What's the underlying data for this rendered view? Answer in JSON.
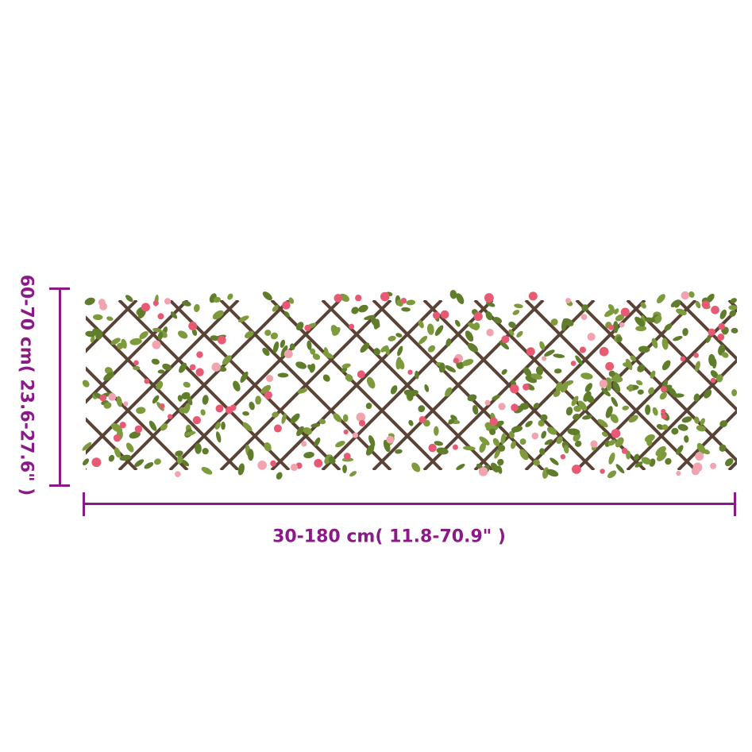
{
  "dimensions": {
    "height_label": "60-70 cm( 23.6-27.6\" )",
    "width_label": "30-180 cm( 11.8-70.9\" )",
    "color": "#8b1a89"
  },
  "product": {
    "name": "",
    "lattice_color": "#5a4335",
    "leaf_color": "#7d9a3c",
    "flower_color": "#e85a74"
  }
}
